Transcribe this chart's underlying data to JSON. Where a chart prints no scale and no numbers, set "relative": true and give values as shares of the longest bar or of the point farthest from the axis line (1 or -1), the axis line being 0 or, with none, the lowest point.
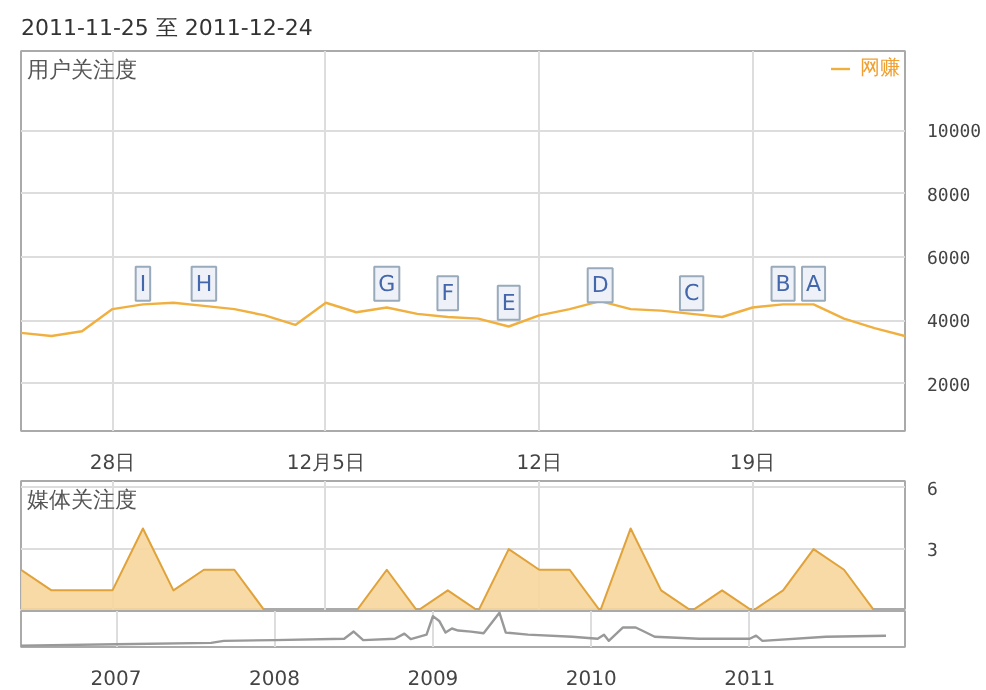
{
  "chart_data": [
    {
      "type": "line",
      "title": "2011-11-25 至 2011-12-24",
      "ylabel": "用户关注度",
      "legend": "top right",
      "grid": true,
      "marker": "none",
      "line_style": "solid",
      "x": [
        "2011-11-25",
        "2011-11-26",
        "2011-11-27",
        "2011-11-28",
        "2011-11-29",
        "2011-11-30",
        "2011-12-01",
        "2011-12-02",
        "2011-12-03",
        "2011-12-04",
        "2011-12-05",
        "2011-12-06",
        "2011-12-07",
        "2011-12-08",
        "2011-12-09",
        "2011-12-10",
        "2011-12-11",
        "2011-12-12",
        "2011-12-13",
        "2011-12-14",
        "2011-12-15",
        "2011-12-16",
        "2011-12-17",
        "2011-12-18",
        "2011-12-19",
        "2011-12-20",
        "2011-12-21",
        "2011-12-22",
        "2011-12-23",
        "2011-12-24"
      ],
      "series": [
        {
          "name": "网赚",
          "color": "#f0b040",
          "values": [
            3600,
            3500,
            3650,
            4350,
            4500,
            4550,
            4450,
            4350,
            4150,
            3850,
            4550,
            4250,
            4400,
            4200,
            4100,
            4050,
            3800,
            4150,
            4350,
            4600,
            4350,
            4300,
            4200,
            4100,
            4400,
            4500,
            4500,
            4050,
            3750,
            3500
          ]
        }
      ],
      "xlim": [
        "2011-11-25",
        "2011-12-24"
      ],
      "xticks": [
        {
          "value": "2011-11-28",
          "label": "28日"
        },
        {
          "value": "2011-12-05",
          "label": "12月5日"
        },
        {
          "value": "2011-12-12",
          "label": "12日"
        },
        {
          "value": "2011-12-19",
          "label": "19日"
        }
      ],
      "ylim": [
        500,
        12500
      ],
      "yticks": [
        2000,
        4000,
        6000,
        8000,
        10000
      ],
      "annotations": [
        {
          "text": "I",
          "x": "2011-11-29",
          "y": 5150
        },
        {
          "text": "H",
          "x": "2011-12-01",
          "y": 5150
        },
        {
          "text": "G",
          "x": "2011-12-07",
          "y": 5150
        },
        {
          "text": "F",
          "x": "2011-12-09",
          "y": 4850
        },
        {
          "text": "E",
          "x": "2011-12-11",
          "y": 4550
        },
        {
          "text": "D",
          "x": "2011-12-14",
          "y": 5100
        },
        {
          "text": "C",
          "x": "2011-12-17",
          "y": 4850
        },
        {
          "text": "B",
          "x": "2011-12-20",
          "y": 5150
        },
        {
          "text": "A",
          "x": "2011-12-21",
          "y": 5150
        }
      ]
    },
    {
      "type": "area",
      "ylabel": "媒体关注度",
      "grid": true,
      "tick_labels": "y",
      "x": [
        "2011-11-25",
        "2011-11-26",
        "2011-11-27",
        "2011-11-28",
        "2011-11-29",
        "2011-11-30",
        "2011-12-01",
        "2011-12-02",
        "2011-12-03",
        "2011-12-04",
        "2011-12-05",
        "2011-12-06",
        "2011-12-07",
        "2011-12-08",
        "2011-12-09",
        "2011-12-10",
        "2011-12-11",
        "2011-12-12",
        "2011-12-13",
        "2011-12-14",
        "2011-12-15",
        "2011-12-16",
        "2011-12-17",
        "2011-12-18",
        "2011-12-19",
        "2011-12-20",
        "2011-12-21",
        "2011-12-22",
        "2011-12-23",
        "2011-12-24"
      ],
      "series": [
        {
          "color": "#f6d69c",
          "values": [
            2,
            1,
            1,
            1,
            4,
            1,
            2,
            2,
            0,
            0,
            0,
            0,
            2,
            0,
            1,
            0,
            3,
            2,
            2,
            0,
            4,
            1,
            0,
            1,
            0,
            1,
            3,
            2,
            0,
            0
          ]
        }
      ],
      "xlim": [
        "2011-11-25",
        "2011-12-24"
      ],
      "xticks": [
        {
          "value": "2011-11-28",
          "label": null
        },
        {
          "value": "2011-12-05",
          "label": null
        },
        {
          "value": "2011-12-12",
          "label": null
        },
        {
          "value": "2011-12-19",
          "label": null
        }
      ],
      "ylim": [
        0,
        6.3
      ],
      "yticks": [
        3,
        6
      ]
    },
    {
      "type": "line",
      "relative": true,
      "grid": "x",
      "tick_labels": "x",
      "x": [
        2006.4,
        2007.0,
        2007.6,
        2007.68,
        2008.0,
        2008.44,
        2008.5,
        2008.56,
        2008.76,
        2008.82,
        2008.86,
        2008.96,
        2009.0,
        2009.04,
        2009.08,
        2009.12,
        2009.16,
        2009.24,
        2009.32,
        2009.42,
        2009.46,
        2009.6,
        2009.88,
        2010.04,
        2010.08,
        2010.11,
        2010.2,
        2010.28,
        2010.32,
        2010.4,
        2010.68,
        2011.0,
        2011.04,
        2011.08,
        2011.48,
        2011.86
      ],
      "series": [
        {
          "color": "#999999",
          "values": [
            0.04,
            0.08,
            0.12,
            0.18,
            0.2,
            0.24,
            0.45,
            0.2,
            0.24,
            0.39,
            0.23,
            0.36,
            0.9,
            0.76,
            0.42,
            0.54,
            0.48,
            0.45,
            0.4,
            1,
            0.42,
            0.36,
            0.3,
            0.24,
            0.36,
            0.18,
            0.57,
            0.57,
            0.48,
            0.3,
            0.24,
            0.24,
            0.33,
            0.18,
            0.3,
            0.33
          ]
        }
      ],
      "xlim": [
        2006.4,
        2011.98
      ],
      "xticks": [
        2007,
        2008,
        2009,
        2010,
        2011
      ]
    }
  ]
}
